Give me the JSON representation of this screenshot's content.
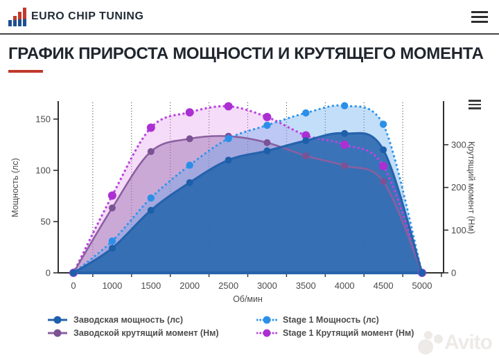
{
  "header": {
    "brand": "EURO CHIP TUNING",
    "icons": {
      "logo": "ascending-bars-red-blue",
      "menu": "hamburger-lines"
    }
  },
  "page": {
    "title": "ГРАФИК ПРИРОСТА МОЩНОСТИ И КРУТЯЩЕГО МОМЕНТА",
    "accent_color": "#c0392b"
  },
  "chart_data": {
    "type": "area",
    "categories": [
      "0",
      "1000",
      "1500",
      "2000",
      "2500",
      "3000",
      "3500",
      "4000",
      "4500",
      "5000"
    ],
    "xlabel": "Об/мин",
    "ylabel_left": "Мощность (лс)",
    "ylabel_right": "Крутящий момент (Нм)",
    "y_left_ticks": [
      0,
      50,
      100,
      150
    ],
    "y_right_ticks": [
      0,
      100,
      200,
      300
    ],
    "y_left_max": 166.2,
    "y_right_max": 399,
    "grid": "vertical-dotted",
    "legend_position": "bottom",
    "series": [
      {
        "name": "Заводская мощность (лс)",
        "axis": "left",
        "style": "solid",
        "color": "#1d5fa9",
        "line": "#2563ac",
        "fill": "rgba(40,102,174,0.88)",
        "values": [
          0,
          24,
          61,
          88,
          110,
          119,
          129,
          136,
          120,
          0
        ]
      },
      {
        "name": "Заводской крутящий момент (Нм)",
        "axis": "right",
        "style": "solid",
        "color": "#7b5294",
        "line": "#8a5fa0",
        "fill": "rgba(146,98,166,0.42)",
        "values": [
          0,
          152,
          284,
          314,
          320,
          305,
          274,
          251,
          214,
          0
        ]
      },
      {
        "name": "Stage 1 Мощность (лс)",
        "axis": "left",
        "style": "dotted",
        "color": "#2b8fe8",
        "line": "#2f95ec",
        "fill": "rgba(96,168,238,0.38)",
        "values": [
          0,
          31,
          73,
          105,
          131,
          144,
          156,
          163,
          145,
          0
        ]
      },
      {
        "name": "Stage 1 Крутящий момент (Нм)",
        "axis": "right",
        "style": "dotted",
        "color": "#ab2fd2",
        "line": "#bb45e0",
        "fill": "rgba(225,148,235,0.33)",
        "values": [
          0,
          181,
          340,
          376,
          390,
          365,
          322,
          300,
          250,
          0
        ]
      }
    ],
    "chart_menu_icon": "hamburger-lines"
  },
  "watermark": {
    "text": "Avito"
  }
}
